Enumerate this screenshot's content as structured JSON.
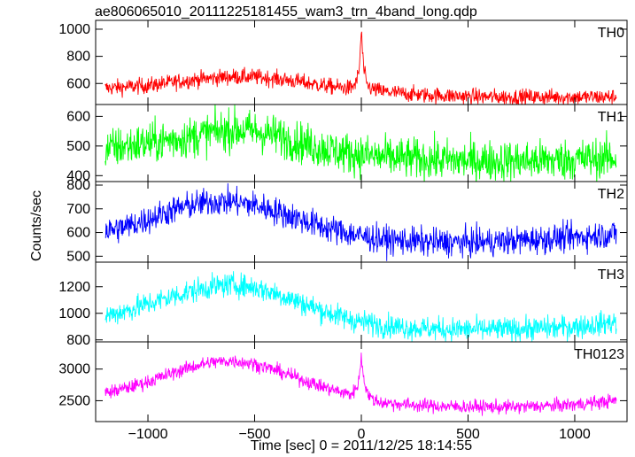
{
  "chart_data": {
    "type": "line",
    "title": "ae806065010_20111225181455_wam3_trn_4band_long.qdp",
    "xlabel": "Time [sec] 0 = 2011/12/25 18:14:55",
    "ylabel": "Counts/sec",
    "xlim": [
      -1245,
      1245
    ],
    "xticks": [
      {
        "value": -1000,
        "label": "−1000"
      },
      {
        "value": -500,
        "label": "−500"
      },
      {
        "value": 0,
        "label": "0"
      },
      {
        "value": 500,
        "label": "500"
      },
      {
        "value": 1000,
        "label": "1000"
      }
    ],
    "shared_x": true,
    "grid": false,
    "panels": [
      {
        "name": "TH0",
        "color": "#ff0000",
        "ylim": [
          445,
          1065
        ],
        "yticks": [
          {
            "value": 600,
            "label": "600"
          },
          {
            "value": 800,
            "label": "800"
          },
          {
            "value": 1000,
            "label": "1000"
          }
        ],
        "noise": 30,
        "x": [
          -1200,
          -1100,
          -1000,
          -900,
          -800,
          -700,
          -600,
          -500,
          -400,
          -300,
          -200,
          -100,
          -50,
          -25,
          -10,
          0,
          10,
          25,
          50,
          100,
          200,
          300,
          400,
          500,
          600,
          700,
          800,
          900,
          1000,
          1100,
          1195
        ],
        "y": [
          565,
          575,
          585,
          605,
          625,
          640,
          650,
          648,
          635,
          615,
          590,
          570,
          565,
          600,
          700,
          990,
          720,
          590,
          560,
          540,
          525,
          515,
          510,
          505,
          500,
          500,
          500,
          500,
          500,
          500,
          500
        ]
      },
      {
        "name": "TH1",
        "color": "#00ff00",
        "ylim": [
          380,
          640
        ],
        "yticks": [
          {
            "value": 400,
            "label": "400"
          },
          {
            "value": 500,
            "label": "500"
          },
          {
            "value": 600,
            "label": "600"
          }
        ],
        "noise": 35,
        "x": [
          -1200,
          -1100,
          -1000,
          -900,
          -800,
          -700,
          -600,
          -500,
          -400,
          -300,
          -200,
          -100,
          0,
          100,
          200,
          300,
          400,
          500,
          600,
          700,
          800,
          900,
          1000,
          1100,
          1195
        ],
        "y": [
          490,
          500,
          510,
          520,
          530,
          545,
          555,
          550,
          535,
          515,
          495,
          480,
          470,
          462,
          458,
          455,
          452,
          450,
          450,
          450,
          450,
          452,
          455,
          458,
          460
        ]
      },
      {
        "name": "TH2",
        "color": "#0000ff",
        "ylim": [
          475,
          815
        ],
        "yticks": [
          {
            "value": 500,
            "label": "500"
          },
          {
            "value": 600,
            "label": "600"
          },
          {
            "value": 700,
            "label": "700"
          },
          {
            "value": 800,
            "label": "800"
          }
        ],
        "noise": 30,
        "x": [
          -1200,
          -1100,
          -1000,
          -900,
          -800,
          -700,
          -600,
          -500,
          -400,
          -300,
          -200,
          -100,
          0,
          100,
          200,
          300,
          400,
          500,
          600,
          700,
          800,
          900,
          1000,
          1100,
          1195
        ],
        "y": [
          605,
          625,
          655,
          690,
          715,
          730,
          730,
          715,
          690,
          660,
          630,
          605,
          585,
          570,
          565,
          560,
          558,
          558,
          560,
          565,
          570,
          575,
          580,
          588,
          595
        ]
      },
      {
        "name": "TH3",
        "color": "#00ffff",
        "ylim": [
          785,
          1385
        ],
        "yticks": [
          {
            "value": 800,
            "label": "800"
          },
          {
            "value": 1000,
            "label": "1000"
          },
          {
            "value": 1200,
            "label": "1200"
          }
        ],
        "noise": 45,
        "x": [
          -1200,
          -1100,
          -1000,
          -900,
          -800,
          -700,
          -600,
          -500,
          -400,
          -300,
          -200,
          -100,
          0,
          100,
          200,
          300,
          400,
          500,
          600,
          700,
          800,
          900,
          1000,
          1100,
          1195
        ],
        "y": [
          980,
          1020,
          1070,
          1120,
          1165,
          1200,
          1215,
          1195,
          1150,
          1090,
          1030,
          975,
          935,
          910,
          895,
          885,
          880,
          878,
          878,
          880,
          885,
          890,
          900,
          915,
          935
        ]
      },
      {
        "name": "TH0123",
        "color": "#ff00ff",
        "ylim": [
          2170,
          3430
        ],
        "yticks": [
          {
            "value": 2500,
            "label": "2500"
          },
          {
            "value": 3000,
            "label": "3000"
          }
        ],
        "noise": 55,
        "x": [
          -1200,
          -1100,
          -1000,
          -900,
          -800,
          -700,
          -600,
          -500,
          -400,
          -300,
          -200,
          -100,
          -50,
          -25,
          -10,
          0,
          10,
          25,
          50,
          100,
          200,
          300,
          400,
          500,
          600,
          700,
          800,
          900,
          1000,
          1100,
          1195
        ],
        "y": [
          2620,
          2700,
          2800,
          2920,
          3030,
          3110,
          3130,
          3080,
          2980,
          2860,
          2740,
          2640,
          2600,
          2680,
          2850,
          3200,
          2900,
          2650,
          2520,
          2470,
          2440,
          2420,
          2410,
          2405,
          2400,
          2400,
          2410,
          2420,
          2440,
          2470,
          2500
        ]
      }
    ]
  }
}
